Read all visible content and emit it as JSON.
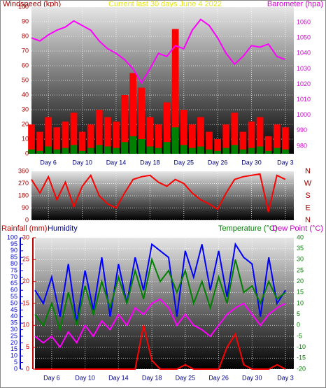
{
  "chart_data": [
    {
      "type": "bar",
      "title": "Current last 30 days June 4 2022",
      "ylabel": "Windspeed (kph)",
      "x": [
        0,
        1,
        2,
        3,
        4,
        5,
        6,
        7,
        8,
        9,
        10,
        11,
        12,
        13,
        14,
        15,
        16,
        17,
        18,
        19,
        20,
        21,
        22,
        23,
        24,
        25,
        26,
        27,
        28,
        29,
        30
      ],
      "xlim": [
        0,
        31
      ],
      "xticks": [
        {
          "value": 2,
          "label": "Day 6"
        },
        {
          "value": 6,
          "label": "Day 10"
        },
        {
          "value": 10,
          "label": "Day 14"
        },
        {
          "value": 14,
          "label": "Day 18"
        },
        {
          "value": 18,
          "label": "Day 25"
        },
        {
          "value": 22,
          "label": "Day 26"
        },
        {
          "value": 26,
          "label": "Day 30"
        },
        {
          "value": 30,
          "label": "Day 3"
        }
      ],
      "ylim": [
        0,
        100
      ],
      "yticks": [
        0,
        10,
        20,
        30,
        40,
        50,
        60,
        70,
        80,
        90,
        100
      ],
      "y2lim": [
        975,
        1070
      ],
      "y2ticks": [
        980,
        990,
        1000,
        1010,
        1020,
        1030,
        1040,
        1050,
        1060
      ],
      "grid": true,
      "series": [
        {
          "type": "bar",
          "color": "#ff0000",
          "values": [
            20,
            15,
            25,
            18,
            22,
            28,
            15,
            20,
            30,
            25,
            22,
            40,
            55,
            45,
            25,
            20,
            35,
            85,
            30,
            20,
            25,
            15,
            10,
            20,
            28,
            15,
            22,
            25,
            12,
            20,
            18
          ]
        },
        {
          "type": "bar",
          "color": "#008000",
          "values": [
            3,
            2,
            5,
            3,
            4,
            6,
            2,
            4,
            6,
            5,
            4,
            8,
            12,
            10,
            5,
            4,
            8,
            18,
            6,
            4,
            5,
            3,
            2,
            4,
            6,
            3,
            4,
            5,
            2,
            4,
            3
          ]
        },
        {
          "type": "line",
          "name": "Barometer (hpa)",
          "axis": "y2",
          "color": "#ff00ff",
          "values": [
            1050,
            1048,
            1052,
            1055,
            1057,
            1061,
            1058,
            1055,
            1048,
            1043,
            1040,
            1036,
            1030,
            1021,
            1030,
            1040,
            1038,
            1045,
            1043,
            1055,
            1062,
            1058,
            1050,
            1040,
            1033,
            1038,
            1045,
            1044,
            1046,
            1038,
            1036
          ]
        }
      ]
    },
    {
      "type": "line",
      "x": [
        0,
        1,
        2,
        3,
        4,
        5,
        6,
        7,
        8,
        9,
        10,
        11,
        12,
        13,
        14,
        15,
        16,
        17,
        18,
        19,
        20,
        21,
        22,
        23,
        24,
        25,
        26,
        27,
        28,
        29,
        30
      ],
      "xlim": [
        0,
        31
      ],
      "xticks": [
        2,
        6,
        10,
        14,
        18,
        22,
        26,
        30
      ],
      "ylim": [
        0,
        360
      ],
      "yticks": [
        0,
        90,
        180,
        270,
        360
      ],
      "compass": [
        "N",
        "E",
        "S",
        "W",
        "N"
      ],
      "grid": true,
      "series": [
        {
          "type": "line",
          "color": "#ff0000",
          "values": [
            300,
            200,
            320,
            150,
            280,
            100,
            250,
            330,
            180,
            120,
            90,
            200,
            300,
            320,
            330,
            280,
            250,
            300,
            270,
            200,
            150,
            120,
            80,
            200,
            300,
            320,
            330,
            340,
            60,
            330,
            300
          ]
        }
      ]
    },
    {
      "type": "line",
      "x": [
        0,
        1,
        2,
        3,
        4,
        5,
        6,
        7,
        8,
        9,
        10,
        11,
        12,
        13,
        14,
        15,
        16,
        17,
        18,
        19,
        20,
        21,
        22,
        23,
        24,
        25,
        26,
        27,
        28,
        29,
        30
      ],
      "xlim": [
        0,
        31
      ],
      "xticks": [
        {
          "value": 2,
          "label": "Day 6"
        },
        {
          "value": 6,
          "label": "Day 10"
        },
        {
          "value": 10,
          "label": "Day 14"
        },
        {
          "value": 14,
          "label": "Day 18"
        },
        {
          "value": 18,
          "label": "Day 25"
        },
        {
          "value": 22,
          "label": "Day 26"
        },
        {
          "value": 26,
          "label": "Day 30"
        },
        {
          "value": 30,
          "label": "Day 3"
        }
      ],
      "ylim": [
        0,
        100
      ],
      "yticks": [
        0,
        5,
        10,
        15,
        20,
        25,
        30,
        35,
        40,
        45,
        50,
        55,
        60,
        65,
        70,
        75,
        80,
        85,
        90,
        95,
        100
      ],
      "y3lim": [
        0,
        30
      ],
      "y3ticks": [
        0,
        5,
        10,
        15,
        20,
        25,
        30
      ],
      "y2lim": [
        -20,
        40
      ],
      "y2ticks": [
        -20,
        -15,
        -10,
        -5,
        0,
        5,
        10,
        15,
        20,
        25,
        30,
        35,
        40
      ],
      "grid": true,
      "series": [
        {
          "type": "line",
          "name": "Humidity",
          "color": "#0000ff",
          "values": [
            60,
            50,
            70,
            40,
            80,
            35,
            75,
            45,
            85,
            40,
            80,
            50,
            85,
            60,
            95,
            90,
            85,
            40,
            90,
            70,
            95,
            60,
            90,
            55,
            95,
            85,
            80,
            40,
            85,
            50,
            60
          ]
        },
        {
          "type": "line",
          "name": "Temperature (°C)",
          "axis": "y2",
          "color": "#008000",
          "values": [
            5,
            0,
            10,
            -2,
            15,
            0,
            18,
            5,
            20,
            8,
            22,
            10,
            25,
            12,
            30,
            20,
            25,
            15,
            25,
            10,
            20,
            8,
            22,
            10,
            30,
            15,
            18,
            10,
            20,
            12,
            15
          ]
        },
        {
          "type": "line",
          "name": "Dew Point (°C)",
          "axis": "y2",
          "color": "#ff00ff",
          "values": [
            -5,
            -8,
            -5,
            -10,
            -3,
            -8,
            0,
            -5,
            2,
            -2,
            5,
            0,
            8,
            5,
            10,
            12,
            8,
            0,
            5,
            0,
            -2,
            -5,
            0,
            5,
            8,
            10,
            5,
            0,
            5,
            8,
            10
          ]
        },
        {
          "type": "line",
          "name": "Rainfall (mm)",
          "axis": "y3",
          "color": "#ff0000",
          "values": [
            0,
            0,
            0,
            0,
            0,
            0,
            0,
            0,
            0,
            0,
            0,
            0,
            0,
            10,
            2,
            0,
            0,
            0,
            1,
            0,
            0,
            0,
            0,
            5,
            8,
            1,
            0,
            0,
            0,
            1,
            0
          ]
        }
      ]
    }
  ]
}
